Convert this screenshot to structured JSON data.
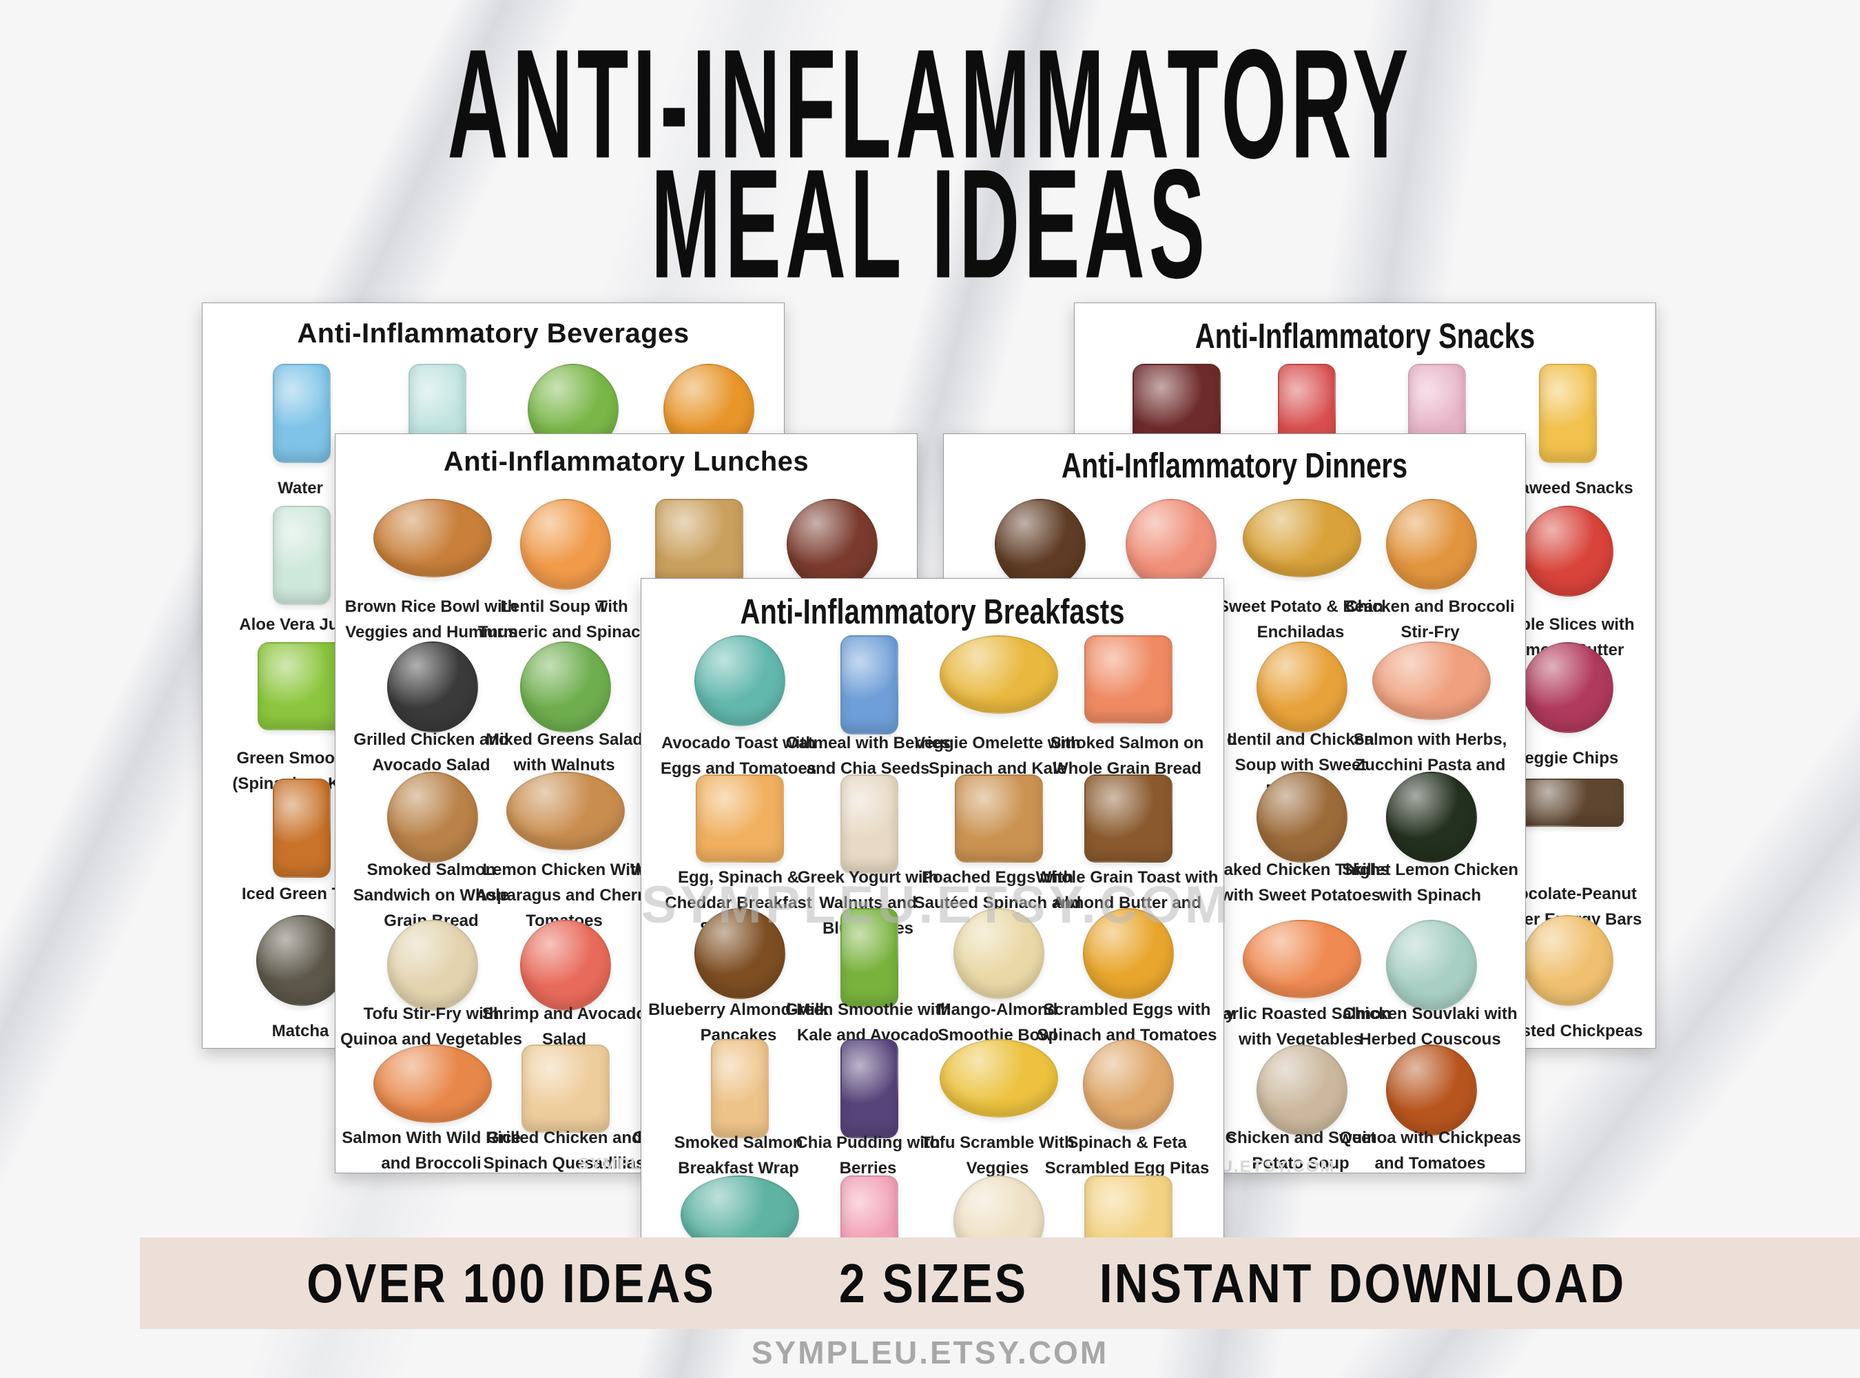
{
  "poster": {
    "title_line1": "ANTI-INFLAMMATORY",
    "title_line2": "MEAL IDEAS",
    "watermark": "SYMPLEU.ETSY.COM",
    "footer": {
      "items": [
        "OVER 100 IDEAS",
        "2 SIZES",
        "INSTANT DOWNLOAD"
      ],
      "site": "SYMPLEU.ETSY.COM"
    },
    "colors": {
      "footer_bar": "#ecdfd8",
      "title_text": "#0d0d0d",
      "label_text": "#1f1f1f",
      "page_background": "#ffffff",
      "watermark_gray": "#bcbcbc",
      "site_text_gray": "#a8a8a8"
    }
  },
  "pages": [
    {
      "id": "beverages",
      "title": "Anti-Inflammatory Beverages",
      "watermark": "",
      "items": [
        {
          "row": 0,
          "col": 0,
          "label": "Water",
          "icon": "water-bottle-illustration",
          "color": "#7fc4e8",
          "shape": "tall"
        },
        {
          "row": 0,
          "col": 1,
          "label": "",
          "icon": "sparkling-water-glass-illustration",
          "color": "#bfe3e0",
          "shape": "tall"
        },
        {
          "row": 0,
          "col": 2,
          "label": "",
          "icon": "green-tea-cup-illustration",
          "color": "#7ab648",
          "shape": "round"
        },
        {
          "row": 0,
          "col": 3,
          "label": "",
          "icon": "lemon-tea-cup-illustration",
          "color": "#e8952a",
          "shape": "round"
        },
        {
          "row": 1,
          "col": 0,
          "label": "Aloe Vera Juice",
          "icon": "aloe-vera-juice-bottle-illustration",
          "color": "#cfe8dc",
          "shape": "tall"
        },
        {
          "row": 2,
          "col": 0,
          "label": "Green Smoothie\n(Spinach or Kale)",
          "icon": "green-smoothie-jar-illustration",
          "color": "#8cc63e",
          "shape": "square"
        },
        {
          "row": 3,
          "col": 0,
          "label": "Iced Green Tea",
          "icon": "iced-green-tea-glass-illustration",
          "color": "#c9732a",
          "shape": "tall"
        },
        {
          "row": 4,
          "col": 0,
          "label": "Matcha",
          "icon": "matcha-cup-illustration",
          "color": "#5d574a",
          "shape": "round"
        }
      ],
      "fragments": []
    },
    {
      "id": "snacks",
      "title": "Anti-Inflammatory Snacks",
      "watermark": "",
      "items": [
        {
          "row": 0,
          "col": 0,
          "label": "",
          "icon": "dark-chocolate-bar-illustration",
          "color": "#6e2b2b",
          "shape": "square"
        },
        {
          "row": 0,
          "col": 1,
          "label": "",
          "icon": "popcorn-box-illustration",
          "color": "#d94f4f",
          "shape": "tall"
        },
        {
          "row": 0,
          "col": 2,
          "label": "",
          "icon": "fruit-yogurt-cup-illustration",
          "color": "#e8b4c8",
          "shape": "tall"
        },
        {
          "row": 0,
          "col": 3,
          "label": "Seaweed Snacks",
          "icon": "seaweed-snacks-pack-illustration",
          "color": "#f2c14e",
          "shape": "tall"
        },
        {
          "row": 1,
          "col": 3,
          "label": "Apple Slices with\nAlmond Butter",
          "icon": "apple-slices-illustration",
          "color": "#d8433a",
          "shape": "round"
        },
        {
          "row": 2,
          "col": 3,
          "label": "Veggie Chips",
          "icon": "veggie-chips-bowl-illustration",
          "color": "#b03a5c",
          "shape": "round"
        },
        {
          "row": 3,
          "col": 3,
          "label": "Chocolate-Peanut\nButter Energy Bars",
          "icon": "energy-bar-illustration",
          "color": "#5f4630",
          "shape": "bar"
        },
        {
          "row": 4,
          "col": 3,
          "label": "Roasted Chickpeas",
          "icon": "roasted-chickpeas-bowl-illustration",
          "color": "#f0c070",
          "shape": "round"
        }
      ],
      "fragments": []
    },
    {
      "id": "lunches",
      "title": "Anti-Inflammatory Lunches",
      "watermark": "SYMPLEU.ETSY.COM",
      "items": [
        {
          "row": 0,
          "col": 0,
          "label": "Brown Rice Bowl with\nVeggies and Hummus",
          "icon": "brown-rice-bowl-illustration",
          "color": "#c87f3a",
          "shape": "wide"
        },
        {
          "row": 0,
          "col": 1,
          "label": "Lentil Soup with\nTurmeric and Spinach",
          "icon": "lentil-soup-bowl-illustration",
          "color": "#f09a4a",
          "shape": "round"
        },
        {
          "row": 0,
          "col": 2,
          "label": "",
          "icon": "club-sandwich-illustration",
          "color": "#caa05e",
          "shape": "square"
        },
        {
          "row": 0,
          "col": 3,
          "label": "",
          "icon": "chili-bowl-illustration",
          "color": "#7a3b2e",
          "shape": "round"
        },
        {
          "row": 1,
          "col": 0,
          "label": "Grilled Chicken and\nAvocado Salad",
          "icon": "grilled-chicken-avocado-salad-illustration",
          "color": "#3a3a3a",
          "shape": "round"
        },
        {
          "row": 1,
          "col": 1,
          "label": "Mixed Greens Salad\nwith Walnuts",
          "icon": "mixed-greens-salad-illustration",
          "color": "#6fae4e",
          "shape": "round"
        },
        {
          "row": 1,
          "col": 2,
          "label": "",
          "icon": "hidden-dish-illustration",
          "color": "#ececec",
          "shape": "round"
        },
        {
          "row": 2,
          "col": 0,
          "label": "Smoked Salmon\nSandwich on Whole\nGrain Bread",
          "icon": "salmon-bagel-sandwich-illustration",
          "color": "#b98248",
          "shape": "round"
        },
        {
          "row": 2,
          "col": 1,
          "label": "Lemon Chicken With\nAsparagus and Cherry\nTomatoes",
          "icon": "lemon-chicken-plate-illustration",
          "color": "#c98d4f",
          "shape": "wide"
        },
        {
          "row": 2,
          "col": 2,
          "label": "",
          "icon": "hidden-dish-illustration",
          "color": "#ececec",
          "shape": "round"
        },
        {
          "row": 3,
          "col": 0,
          "label": "Tofu Stir-Fry with\nQuinoa and Vegetables",
          "icon": "tofu-stir-fry-bowl-illustration",
          "color": "#e3d3ae",
          "shape": "round"
        },
        {
          "row": 3,
          "col": 1,
          "label": "Shrimp and Avocado\nSalad",
          "icon": "shrimp-avocado-salad-illustration",
          "color": "#e86a5a",
          "shape": "round"
        },
        {
          "row": 3,
          "col": 2,
          "label": "",
          "icon": "hidden-dish-illustration",
          "color": "#ececec",
          "shape": "round"
        },
        {
          "row": 4,
          "col": 0,
          "label": "Salmon With Wild Rice\nand Broccoli",
          "icon": "salmon-wild-rice-bowl-illustration",
          "color": "#e8874a",
          "shape": "wide"
        },
        {
          "row": 4,
          "col": 1,
          "label": "Grilled Chicken and\nSpinach Quesadillas",
          "icon": "chicken-quesadilla-illustration",
          "color": "#eecd9c",
          "shape": "square"
        },
        {
          "row": 4,
          "col": 2,
          "label": "",
          "icon": "hidden-dish-illustration",
          "color": "#ececec",
          "shape": "round"
        }
      ],
      "fragments": [
        {
          "text": "T"
        },
        {
          "text": "C"
        },
        {
          "text": "Wh"
        },
        {
          "text": "Ch"
        }
      ]
    },
    {
      "id": "dinners",
      "title": "Anti-Inflammatory Dinners",
      "watermark": "SYMPLEU.ETSY.COM",
      "items": [
        {
          "row": 0,
          "col": 0,
          "label": "",
          "icon": "chicken-satay-bowl-illustration",
          "color": "#5f3c25",
          "shape": "round"
        },
        {
          "row": 0,
          "col": 1,
          "label": "",
          "icon": "salmon-veggie-plate-illustration",
          "color": "#f0907a",
          "shape": "round"
        },
        {
          "row": 0,
          "col": 2,
          "label": "Sweet Potato & Bean\nEnchiladas",
          "icon": "enchiladas-plate-illustration",
          "color": "#d9a23a",
          "shape": "wide"
        },
        {
          "row": 0,
          "col": 3,
          "label": "Chicken and Broccoli\nStir-Fry",
          "icon": "chicken-broccoli-stir-fry-illustration",
          "color": "#e2953f",
          "shape": "round"
        },
        {
          "row": 1,
          "col": 1,
          "label": "",
          "icon": "hidden-dish-illustration",
          "color": "#ececec",
          "shape": "round"
        },
        {
          "row": 1,
          "col": 2,
          "label": "Lentil and Chicken\nSoup with Sweet\nPotatoes",
          "icon": "lentil-chicken-soup-illustration",
          "color": "#e8a23a",
          "shape": "round"
        },
        {
          "row": 1,
          "col": 3,
          "label": "Salmon with Herbs,\nZucchini Pasta and\nPesto",
          "icon": "zucchini-pasta-plate-illustration",
          "color": "#efa07e",
          "shape": "wide"
        },
        {
          "row": 2,
          "col": 1,
          "label": "",
          "icon": "hidden-dish-illustration",
          "color": "#ececec",
          "shape": "round"
        },
        {
          "row": 2,
          "col": 2,
          "label": "Baked Chicken Thighs\nwith Sweet Potatoes",
          "icon": "baked-chicken-thighs-illustration",
          "color": "#9c6b3a",
          "shape": "round"
        },
        {
          "row": 2,
          "col": 3,
          "label": "Skillet Lemon Chicken\nwith Spinach",
          "icon": "skillet-lemon-chicken-illustration",
          "color": "#24301f",
          "shape": "round"
        },
        {
          "row": 3,
          "col": 1,
          "label": "",
          "icon": "hidden-dish-illustration",
          "color": "#ececec",
          "shape": "round"
        },
        {
          "row": 3,
          "col": 2,
          "label": "Garlic Roasted Salmon\nwith Vegetables",
          "icon": "garlic-roasted-salmon-illustration",
          "color": "#ef8a52",
          "shape": "wide"
        },
        {
          "row": 3,
          "col": 3,
          "label": "Chicken Souvlaki with\nHerbed Couscous",
          "icon": "chicken-souvlaki-plate-illustration",
          "color": "#a8cfc4",
          "shape": "round"
        },
        {
          "row": 4,
          "col": 1,
          "label": "",
          "icon": "hidden-dish-illustration",
          "color": "#ececec",
          "shape": "round"
        },
        {
          "row": 4,
          "col": 2,
          "label": "Chicken and Sweet\nPotato Soup",
          "icon": "chicken-sweet-potato-soup-illustration",
          "color": "#cbb89e",
          "shape": "round"
        },
        {
          "row": 4,
          "col": 3,
          "label": "Quinoa with Chickpeas\nand Tomatoes",
          "icon": "quinoa-chickpea-pot-illustration",
          "color": "#b8551f",
          "shape": "round"
        }
      ],
      "fragments": [
        {
          "text": "d"
        },
        {
          "text": "y"
        },
        {
          "text": "s"
        }
      ]
    },
    {
      "id": "breakfasts",
      "title": "Anti-Inflammatory Breakfasts",
      "watermark": "SYMPLEU.ETSY.COM",
      "items": [
        {
          "row": 0,
          "col": 0,
          "label": "Avocado Toast with\nEggs and Tomatoes",
          "icon": "avocado-toast-eggs-plate-illustration",
          "color": "#63b8ae",
          "shape": "round"
        },
        {
          "row": 0,
          "col": 1,
          "label": "Oatmeal with Berries\nand Chia Seeds",
          "icon": "oatmeal-cup-illustration",
          "color": "#6f9fd8",
          "shape": "tall"
        },
        {
          "row": 0,
          "col": 2,
          "label": "Veggie Omelette with\nSpinach and Kale",
          "icon": "veggie-omelette-plate-illustration",
          "color": "#e9b83f",
          "shape": "wide"
        },
        {
          "row": 0,
          "col": 3,
          "label": "Smoked Salmon on\nWhole Grain Bread",
          "icon": "smoked-salmon-toast-illustration",
          "color": "#ef8a63",
          "shape": "square"
        },
        {
          "row": 1,
          "col": 0,
          "label": "Egg, Spinach &\nCheddar Breakfast\nSandwich",
          "icon": "egg-spinach-sandwich-illustration",
          "color": "#f0b05f",
          "shape": "square"
        },
        {
          "row": 1,
          "col": 1,
          "label": "Greek Yogurt with\nWalnuts and\nBlueberries",
          "icon": "greek-yogurt-glass-illustration",
          "color": "#e7d9c4",
          "shape": "tall"
        },
        {
          "row": 1,
          "col": 2,
          "label": "Poached Eggs with\nSautéed Spinach and\nTomato",
          "icon": "poached-egg-toast-illustration",
          "color": "#cb9352",
          "shape": "square"
        },
        {
          "row": 1,
          "col": 3,
          "label": "Whole Grain Toast with\nAlmond Butter and\nBanana",
          "icon": "almond-butter-banana-toast-illustration",
          "color": "#8a5a2e",
          "shape": "square"
        },
        {
          "row": 2,
          "col": 0,
          "label": "Blueberry Almond-Milk\nPancakes",
          "icon": "blueberry-pancakes-illustration",
          "color": "#7d4e22",
          "shape": "round"
        },
        {
          "row": 2,
          "col": 1,
          "label": "Green Smoothie with\nKale and Avocado",
          "icon": "green-smoothie-glass-illustration",
          "color": "#79b33e",
          "shape": "tall"
        },
        {
          "row": 2,
          "col": 2,
          "label": "Mango-Almond\nSmoothie Bowl",
          "icon": "mango-smoothie-bowl-illustration",
          "color": "#ead9a8",
          "shape": "round"
        },
        {
          "row": 2,
          "col": 3,
          "label": "Scrambled Eggs with\nSpinach and Tomatoes",
          "icon": "scrambled-eggs-bowl-illustration",
          "color": "#e9a62e",
          "shape": "round"
        },
        {
          "row": 3,
          "col": 0,
          "label": "Smoked Salmon\nBreakfast Wrap",
          "icon": "salmon-breakfast-wrap-illustration",
          "color": "#eec389",
          "shape": "tall"
        },
        {
          "row": 3,
          "col": 1,
          "label": "Chia Pudding with\nBerries",
          "icon": "chia-pudding-glass-illustration",
          "color": "#57447a",
          "shape": "tall"
        },
        {
          "row": 3,
          "col": 2,
          "label": "Tofu Scramble With\nVeggies",
          "icon": "tofu-scramble-plate-illustration",
          "color": "#ecc23f",
          "shape": "wide"
        },
        {
          "row": 3,
          "col": 3,
          "label": "Spinach & Feta\nScrambled Egg Pitas",
          "icon": "egg-pita-illustration",
          "color": "#dfa76a",
          "shape": "round"
        },
        {
          "row": 4,
          "col": 0,
          "label": "",
          "icon": "waffle-plate-illustration",
          "color": "#5fb3a3",
          "shape": "wide"
        },
        {
          "row": 4,
          "col": 1,
          "label": "",
          "icon": "pink-smoothie-jar-illustration",
          "color": "#f2a0b5",
          "shape": "tall"
        },
        {
          "row": 4,
          "col": 2,
          "label": "",
          "icon": "porridge-bowl-illustration",
          "color": "#eee0c4",
          "shape": "round"
        },
        {
          "row": 4,
          "col": 3,
          "label": "",
          "icon": "fried-egg-toast-illustration",
          "color": "#f3d284",
          "shape": "square"
        }
      ],
      "fragments": []
    }
  ]
}
